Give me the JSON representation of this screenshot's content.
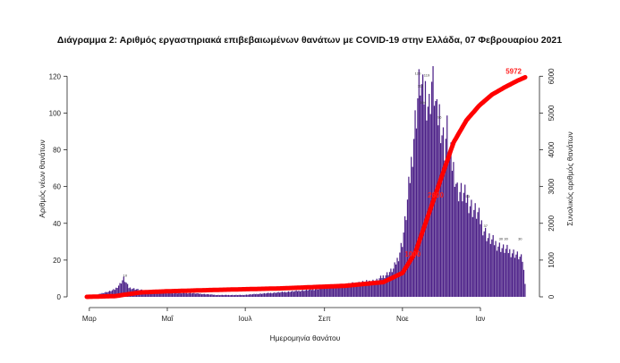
{
  "chart_data": {
    "type": "bar",
    "title": "Διάγραμμα 2: Αριθμός εργαστηριακά επιβεβαιωμένων θανάτων με COVID-19 στην Ελλάδα, 07 Φεβρουαρίου 2021",
    "xlabel": "Ημερομηνία θανάτου",
    "ylabel": "Αριθμός νέων θανάτων",
    "y2label": "Συνολικός αριθμός θανάτων",
    "ylim": [
      0,
      125
    ],
    "y2lim": [
      0,
      6250
    ],
    "yticks": [
      "0",
      "20",
      "40",
      "60",
      "80",
      "100",
      "120"
    ],
    "y2ticks": [
      "0",
      "1000",
      "2000",
      "3000",
      "4000",
      "5000",
      "6000"
    ],
    "xticks": [
      {
        "label": "Μαρ",
        "day": 0
      },
      {
        "label": "Μαΐ",
        "day": 61
      },
      {
        "label": "Ιουλ",
        "day": 122
      },
      {
        "label": "Σεπ",
        "day": 184
      },
      {
        "label": "Νοε",
        "day": 245
      },
      {
        "label": "Ιαν",
        "day": 306
      }
    ],
    "series": [
      {
        "type": "bar",
        "color": "#4b1f87"
      },
      {
        "type": "line",
        "color": "#ff0000"
      }
    ],
    "bar_keypoints": [
      [
        -2,
        0
      ],
      [
        2,
        1
      ],
      [
        6,
        1
      ],
      [
        10,
        2
      ],
      [
        16,
        3
      ],
      [
        20,
        4
      ],
      [
        24,
        7
      ],
      [
        27,
        10
      ],
      [
        31,
        5
      ],
      [
        38,
        4
      ],
      [
        45,
        3
      ],
      [
        55,
        2
      ],
      [
        65,
        2
      ],
      [
        80,
        2
      ],
      [
        100,
        1
      ],
      [
        120,
        1
      ],
      [
        140,
        2
      ],
      [
        160,
        3
      ],
      [
        175,
        4
      ],
      [
        185,
        5
      ],
      [
        195,
        6
      ],
      [
        205,
        7
      ],
      [
        215,
        8
      ],
      [
        225,
        9
      ],
      [
        232,
        12
      ],
      [
        238,
        15
      ],
      [
        242,
        22
      ],
      [
        245,
        30
      ],
      [
        248,
        45
      ],
      [
        251,
        65
      ],
      [
        254,
        88
      ],
      [
        257,
        108
      ],
      [
        259,
        118
      ],
      [
        261,
        108
      ],
      [
        263,
        112
      ],
      [
        266,
        103
      ],
      [
        268,
        117
      ],
      [
        270,
        112
      ],
      [
        272,
        96
      ],
      [
        274,
        100
      ],
      [
        276,
        90
      ],
      [
        278,
        82
      ],
      [
        280,
        90
      ],
      [
        282,
        78
      ],
      [
        284,
        72
      ],
      [
        286,
        68
      ],
      [
        288,
        58
      ],
      [
        292,
        56
      ],
      [
        296,
        53
      ],
      [
        300,
        48
      ],
      [
        304,
        45
      ],
      [
        308,
        38
      ],
      [
        312,
        32
      ],
      [
        316,
        30
      ],
      [
        320,
        28
      ],
      [
        324,
        26
      ],
      [
        328,
        25
      ],
      [
        332,
        24
      ],
      [
        336,
        22
      ],
      [
        339,
        20
      ],
      [
        341,
        8
      ]
    ],
    "cumulative_keypoints": [
      [
        -2,
        0
      ],
      [
        20,
        20
      ],
      [
        40,
        120
      ],
      [
        60,
        150
      ],
      [
        100,
        190
      ],
      [
        150,
        230
      ],
      [
        200,
        300
      ],
      [
        230,
        400
      ],
      [
        245,
        650
      ],
      [
        255,
        1200
      ],
      [
        265,
        2200
      ],
      [
        275,
        3200
      ],
      [
        285,
        4200
      ],
      [
        295,
        4800
      ],
      [
        305,
        5200
      ],
      [
        315,
        5500
      ],
      [
        325,
        5700
      ],
      [
        335,
        5880
      ],
      [
        341,
        5972
      ]
    ],
    "bar_value_labels": [
      {
        "day": 28,
        "value": 10,
        "text": "10"
      },
      {
        "day": 257,
        "value": 120,
        "text": "120"
      },
      {
        "day": 259,
        "value": 113,
        "text": "113"
      },
      {
        "day": 261,
        "value": 104,
        "text": "104"
      },
      {
        "day": 264,
        "value": 119,
        "text": "119"
      },
      {
        "day": 274,
        "value": 96,
        "text": "96"
      },
      {
        "day": 296,
        "value": 53,
        "text": "53"
      },
      {
        "day": 310,
        "value": 37,
        "text": "37"
      },
      {
        "day": 322,
        "value": 30,
        "text": "30"
      },
      {
        "day": 326,
        "value": 30,
        "text": "30"
      },
      {
        "day": 337,
        "value": 30,
        "text": "30"
      }
    ],
    "line_annotations": [
      {
        "day": 253,
        "value": 1000,
        "text": "1000"
      },
      {
        "day": 271,
        "value": 2600,
        "text": "2600"
      },
      {
        "day": 341,
        "value": 5972,
        "text": "5972"
      }
    ]
  }
}
